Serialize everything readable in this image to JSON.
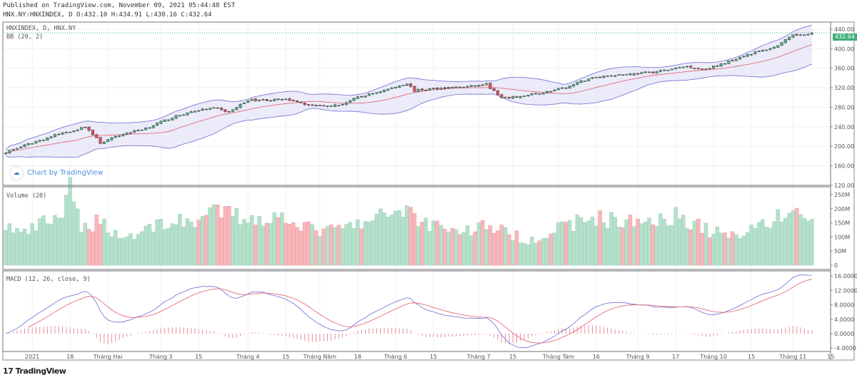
{
  "header": {
    "published": "Published on TradingView.com, November 09, 2021 05:44:48 EST",
    "ohlc": "HNX.NY:HNXINDEX, D O:432.10 H:434.91 L:430.16 C:432.64"
  },
  "panes": {
    "price_label": "HNXINDEX, D, HNX.NY",
    "bb_label": "BB (20, 2)",
    "volume_label": "Volume (20)",
    "macd_label": "MACD (12, 26, close, 9)"
  },
  "watermark": "Chart by TradingView",
  "logo": "TradingView",
  "last_price": "432.64",
  "colors": {
    "up": "#53b987",
    "down": "#eb4d5c",
    "vol_up": "#b5e0cb",
    "vol_down": "#f7b7bb",
    "bb_line": "#6b6bd6",
    "bb_fill": "#e6e6f7",
    "bb_basis": "#e25c6a",
    "macd": "#6b6bd6",
    "signal": "#e25c6a",
    "hist": "#e58f98"
  },
  "chart_data": {
    "type": "candlestick",
    "title": "HNXINDEX, D, HNX.NY",
    "price_axis": {
      "ticks": [
        "440.00",
        "400.00",
        "360.00",
        "320.00",
        "280.00",
        "240.00",
        "200.00",
        "160.00",
        "120.00"
      ],
      "range": [
        120,
        440
      ]
    },
    "volume_axis": {
      "ticks": [
        "250M",
        "200M",
        "150M",
        "100M",
        "50M",
        "0"
      ],
      "range": [
        0,
        260
      ]
    },
    "macd_axis": {
      "ticks": [
        "16.0000",
        "12.0000",
        "8.0000",
        "4.0000",
        "0.0000",
        "-4.0000"
      ],
      "range": [
        -5.5,
        17.5
      ]
    },
    "x_ticks": [
      [
        "2021",
        7
      ],
      [
        "18",
        17
      ],
      [
        "Tháng Hai",
        27
      ],
      [
        "Tháng 3",
        41
      ],
      [
        "15",
        51
      ],
      [
        "Tháng 4",
        64
      ],
      [
        "15",
        74
      ],
      [
        "Tháng Năm",
        83
      ],
      [
        "18",
        93
      ],
      [
        "Tháng 6",
        103
      ],
      [
        "15",
        113
      ],
      [
        "Tháng 7",
        125
      ],
      [
        "15",
        134
      ],
      [
        "Tháng Tám",
        146
      ],
      [
        "16",
        156
      ],
      [
        "Tháng 9",
        167
      ],
      [
        "17",
        177
      ],
      [
        "Tháng 10",
        187
      ],
      [
        "15",
        197
      ],
      [
        "Tháng 11",
        208
      ],
      [
        "15",
        218
      ]
    ],
    "bars": 214,
    "close_keypoints": [
      [
        0,
        188
      ],
      [
        7,
        207
      ],
      [
        14,
        225
      ],
      [
        20,
        237
      ],
      [
        21,
        241
      ],
      [
        25,
        207
      ],
      [
        31,
        225
      ],
      [
        37,
        237
      ],
      [
        44,
        259
      ],
      [
        50,
        273
      ],
      [
        55,
        278
      ],
      [
        59,
        270
      ],
      [
        64,
        295
      ],
      [
        71,
        295
      ],
      [
        76,
        295
      ],
      [
        80,
        284
      ],
      [
        88,
        284
      ],
      [
        93,
        300
      ],
      [
        101,
        317
      ],
      [
        106,
        329
      ],
      [
        108,
        314
      ],
      [
        114,
        319
      ],
      [
        122,
        322
      ],
      [
        127,
        327
      ],
      [
        131,
        298
      ],
      [
        137,
        303
      ],
      [
        142,
        310
      ],
      [
        148,
        320
      ],
      [
        154,
        339
      ],
      [
        160,
        346
      ],
      [
        165,
        348
      ],
      [
        171,
        352
      ],
      [
        176,
        358
      ],
      [
        180,
        364
      ],
      [
        184,
        358
      ],
      [
        188,
        365
      ],
      [
        195,
        386
      ],
      [
        203,
        403
      ],
      [
        208,
        427
      ],
      [
        213,
        432.64
      ]
    ],
    "volume_keypoints_M": [
      [
        0,
        140
      ],
      [
        5,
        110
      ],
      [
        10,
        150
      ],
      [
        15,
        180
      ],
      [
        17,
        260
      ],
      [
        20,
        130
      ],
      [
        25,
        160
      ],
      [
        30,
        100
      ],
      [
        35,
        110
      ],
      [
        40,
        150
      ],
      [
        45,
        150
      ],
      [
        50,
        160
      ],
      [
        57,
        190
      ],
      [
        62,
        170
      ],
      [
        70,
        165
      ],
      [
        75,
        175
      ],
      [
        80,
        130
      ],
      [
        85,
        120
      ],
      [
        90,
        135
      ],
      [
        96,
        150
      ],
      [
        102,
        190
      ],
      [
        106,
        205
      ],
      [
        110,
        150
      ],
      [
        115,
        145
      ],
      [
        120,
        115
      ],
      [
        127,
        145
      ],
      [
        133,
        110
      ],
      [
        138,
        90
      ],
      [
        143,
        110
      ],
      [
        150,
        150
      ],
      [
        156,
        170
      ],
      [
        160,
        160
      ],
      [
        166,
        150
      ],
      [
        172,
        170
      ],
      [
        178,
        175
      ],
      [
        182,
        150
      ],
      [
        186,
        120
      ],
      [
        192,
        105
      ],
      [
        198,
        140
      ],
      [
        204,
        165
      ],
      [
        208,
        200
      ],
      [
        213,
        145
      ]
    ]
  }
}
